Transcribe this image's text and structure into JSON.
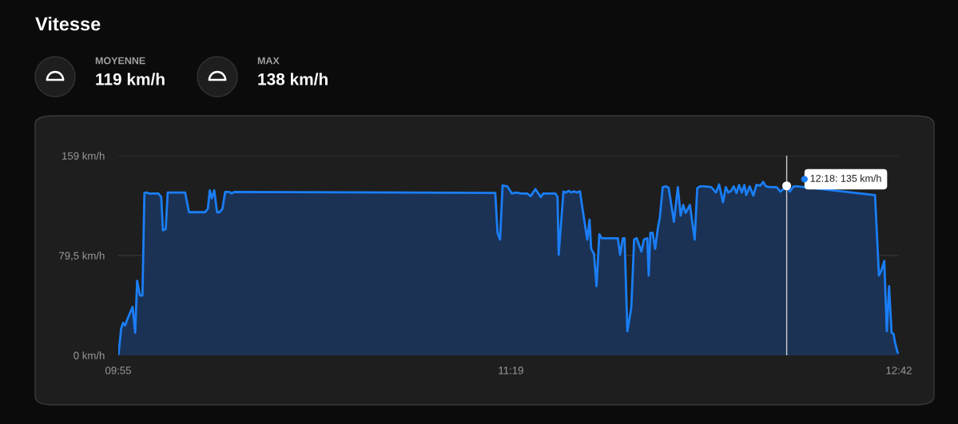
{
  "chart_data": {
    "type": "area",
    "title": "Vitesse",
    "annotations": [
      "MOYENNE",
      "119 km/h",
      "MAX",
      "138 km/h",
      {
        "text": "12:18: 135 km/h",
        "x": 12.3,
        "y": 135
      }
    ],
    "series": [
      {
        "color": "#1a7ef5",
        "x": [
          9.917,
          9.918,
          9.927,
          9.934,
          9.941,
          9.951,
          9.968,
          9.977,
          9.984,
          9.994,
          10.003,
          10.01,
          10.017,
          10.027,
          10.06,
          10.07,
          10.076,
          10.086,
          10.093,
          10.155,
          10.169,
          10.226,
          10.236,
          10.243,
          10.25,
          10.259,
          10.269,
          10.278,
          10.288,
          10.298,
          10.312,
          10.321,
          10.331,
          11.261,
          11.269,
          11.278,
          11.287,
          11.304,
          11.32,
          11.337,
          11.352,
          11.375,
          11.387,
          11.404,
          11.423,
          11.432,
          11.475,
          11.483,
          11.487,
          11.504,
          11.513,
          11.523,
          11.532,
          11.541,
          11.551,
          11.563,
          11.575,
          11.589,
          11.597,
          11.603,
          11.613,
          11.622,
          11.632,
          11.64,
          11.698,
          11.706,
          11.716,
          11.722,
          11.732,
          11.746,
          11.756,
          11.765,
          11.782,
          11.791,
          11.803,
          11.808,
          11.814,
          11.822,
          11.831,
          11.841,
          11.848,
          11.858,
          11.869,
          11.879,
          11.898,
          11.912,
          11.922,
          11.931,
          11.94,
          11.955,
          11.972,
          11.981,
          11.991,
          12.007,
          12.031,
          12.048,
          12.059,
          12.073,
          12.083,
          12.092,
          12.102,
          12.111,
          12.121,
          12.13,
          12.14,
          12.149,
          12.156,
          12.168,
          12.181,
          12.192,
          12.207,
          12.216,
          12.226,
          12.24,
          12.264,
          12.278,
          12.3,
          12.311,
          12.325,
          12.338,
          12.615,
          12.629,
          12.638,
          12.648,
          12.657,
          12.665,
          12.674,
          12.681,
          12.686,
          12.695,
          12.7
        ],
        "values": [
          0.4,
          1.7,
          21.2,
          25.9,
          23.7,
          29.7,
          38.6,
          18.0,
          59.4,
          47.7,
          47.7,
          129.3,
          129.7,
          128.9,
          128.9,
          126.1,
          99.6,
          100.7,
          129.7,
          129.7,
          114.0,
          114.0,
          116.6,
          131.4,
          125.1,
          131.4,
          114.0,
          114.0,
          116.6,
          130.2,
          130.2,
          128.9,
          130.2,
          129.3,
          97.5,
          92.2,
          135.3,
          134.6,
          128.9,
          129.7,
          128.9,
          128.9,
          126.8,
          132.5,
          126.1,
          128.9,
          128.9,
          126.1,
          80.1,
          130.4,
          129.7,
          131.0,
          129.7,
          130.6,
          129.7,
          130.6,
          112.4,
          92.2,
          108.1,
          84.8,
          80.6,
          55.1,
          96.5,
          93.3,
          93.3,
          80.1,
          93.3,
          93.3,
          19.1,
          38.2,
          92.2,
          93.3,
          82.7,
          92.2,
          93.3,
          63.6,
          97.5,
          97.5,
          84.8,
          101.8,
          110.2,
          134.0,
          134.6,
          133.6,
          106.4,
          134.0,
          111.3,
          119.8,
          113.4,
          119.8,
          92.2,
          133.1,
          134.6,
          134.6,
          134.0,
          129.7,
          136.1,
          121.9,
          134.0,
          129.7,
          131.0,
          134.6,
          129.3,
          135.7,
          129.7,
          135.7,
          127.6,
          134.6,
          127.2,
          135.7,
          135.3,
          138.2,
          134.6,
          134.0,
          134.0,
          130.4,
          135,
          130.4,
          134.6,
          134.6,
          127.6,
          63.6,
          67.9,
          75.2,
          19.1,
          55.1,
          18.0,
          17.0,
          10.6,
          2.5,
          2.1
        ]
      }
    ],
    "xlim": [
      9.9167,
      12.7
    ],
    "xticks": [
      {
        "value": 9.9167,
        "label": "09:55"
      },
      {
        "value": 11.3167,
        "label": "11:19"
      },
      {
        "value": 12.7,
        "label": "12:42"
      }
    ],
    "ylim": [
      0,
      159
    ],
    "yticks": [
      {
        "value": 0,
        "label": "0 km/h"
      },
      {
        "value": 79.5,
        "label": "79,5 km/h"
      },
      {
        "value": 159,
        "label": "159 km/h"
      }
    ],
    "ref_lines": [
      {
        "axis": "x",
        "value": 12.3,
        "color": "#d0d0d0"
      }
    ],
    "grid": "y"
  }
}
